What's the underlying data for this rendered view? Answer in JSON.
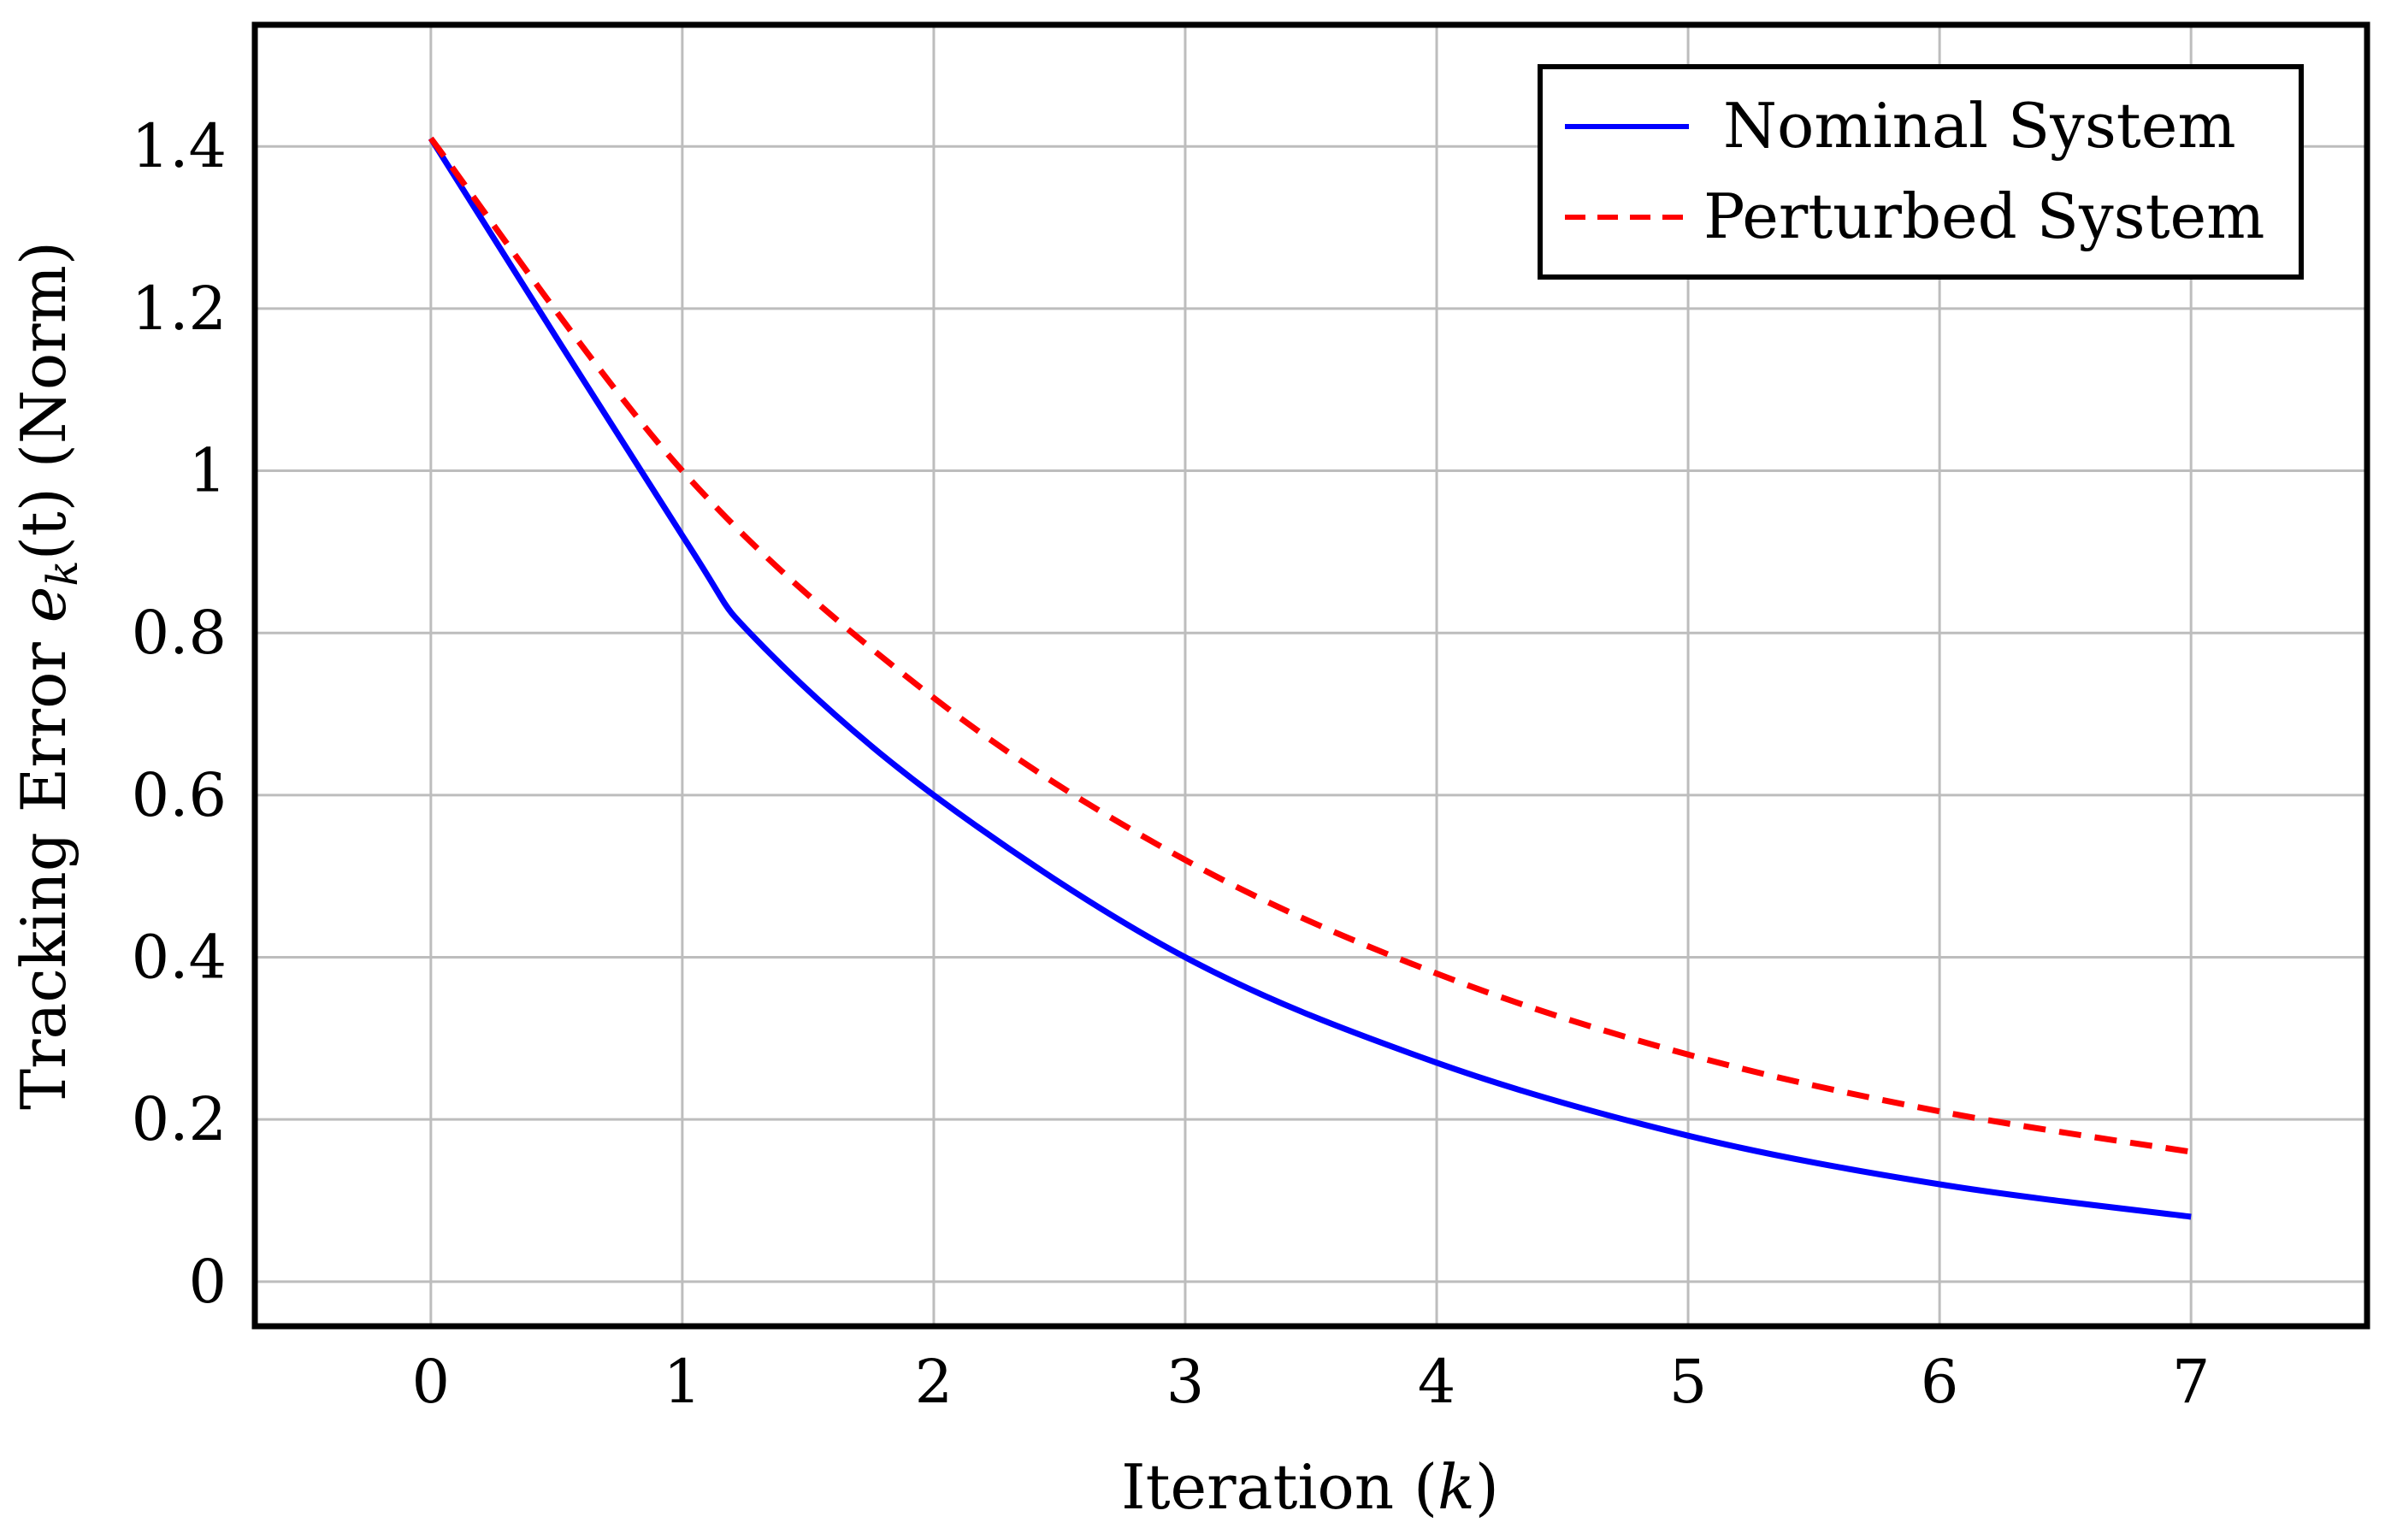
{
  "chart_data": {
    "type": "line",
    "x": [
      0,
      1,
      2,
      3,
      4,
      5,
      6,
      7
    ],
    "series": [
      {
        "name": "Nominal System",
        "color": "#0000ff",
        "style": "solid",
        "x": [
          0,
          1,
          1.3,
          2,
          3,
          4,
          5,
          6,
          7
        ],
        "values": [
          1.41,
          0.92,
          0.79,
          0.6,
          0.4,
          0.27,
          0.18,
          0.12,
          0.08
        ]
      },
      {
        "name": "Perturbed System",
        "color": "#ff0000",
        "style": "dashed",
        "x": [
          0,
          1,
          2,
          3,
          4,
          5,
          6,
          7
        ],
        "values": [
          1.41,
          1.0,
          0.72,
          0.52,
          0.38,
          0.28,
          0.21,
          0.16
        ]
      }
    ],
    "title": "",
    "xlabel_text": "Iteration (",
    "xlabel_var": "k",
    "xlabel_close": ")",
    "ylabel_text": "Tracking Error ",
    "ylabel_var": "e",
    "ylabel_sub": "k",
    "ylabel_arg": "(t)",
    "ylabel_tail": " (Norm)",
    "xlim": [
      -0.7,
      7.7
    ],
    "ylim": [
      -0.055,
      1.55
    ],
    "xticks": [
      0,
      1,
      2,
      3,
      4,
      5,
      6,
      7
    ],
    "xtick_labels": [
      "0",
      "1",
      "2",
      "3",
      "4",
      "5",
      "6",
      "7"
    ],
    "yticks": [
      0,
      0.2,
      0.4,
      0.6,
      0.8,
      1.0,
      1.2,
      1.4
    ],
    "ytick_labels": [
      "0",
      "0.2",
      "0.4",
      "0.6",
      "0.8",
      "1",
      "1.2",
      "1.4"
    ],
    "grid": true,
    "legend_position": "top-right"
  }
}
